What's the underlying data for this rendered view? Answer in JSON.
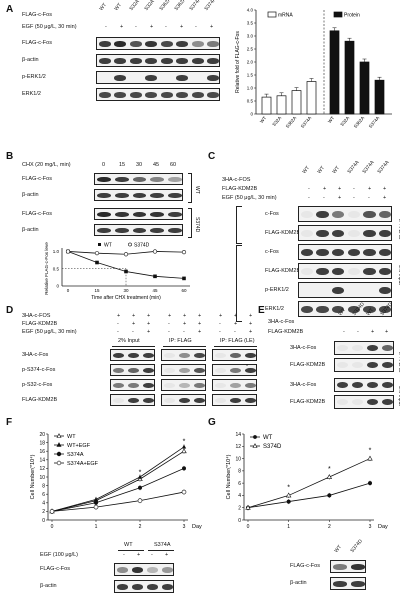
{
  "panel_letters": [
    "A",
    "B",
    "C",
    "D",
    "E",
    "F",
    "G"
  ],
  "A": {
    "row_flag": "FLAG-c-Fos",
    "row_egf": "EGF (50 μg/L, 30 min)",
    "lanes": [
      "WT",
      "WT",
      "S32A",
      "S32A",
      "S362A",
      "S362A",
      "S374A",
      "S374A"
    ],
    "egf_signs": [
      "-",
      "+",
      "-",
      "+",
      "-",
      "+",
      "-",
      "+"
    ],
    "blots": [
      "FLAG-c-Fos",
      "β-actin",
      "p-ERK1/2",
      "ERK1/2"
    ]
  },
  "A_chart": {
    "type": "bar",
    "ylabel": "Relative fold of FLAG-c-Fos",
    "legend": [
      "mRNA",
      "Protein"
    ],
    "categories": [
      "WT",
      "S32A",
      "S362A",
      "S374A"
    ],
    "series": [
      {
        "name": "mRNA",
        "values": [
          0.65,
          0.7,
          0.9,
          1.25
        ]
      },
      {
        "name": "Protein",
        "values": [
          3.2,
          2.8,
          2.0,
          1.3
        ]
      }
    ],
    "yticks": [
      "0",
      "0.5",
      "1.0",
      "1.5",
      "2.0",
      "2.5",
      "3.0",
      "3.5",
      "4.0"
    ],
    "ylim": [
      0,
      4
    ]
  },
  "B": {
    "chx": "CHX (20 mg/L, min)",
    "times": [
      "0",
      "15",
      "30",
      "45",
      "60"
    ],
    "blots": [
      "FLAG-c-Fos",
      "β-actin",
      "FLAG-c-Fos",
      "β-actin"
    ],
    "groups": [
      "WT",
      "S374D"
    ]
  },
  "B_chart": {
    "type": "line",
    "xlabel": "Time after CHX treatment (min)",
    "ylabel": "Relative FLAG-c-Fos level",
    "x": [
      0,
      15,
      30,
      45,
      60
    ],
    "xticks": [
      "0",
      "15",
      "30",
      "45",
      "60"
    ],
    "yticks": [
      "0",
      "0.5",
      "1.0"
    ],
    "ylim": [
      0,
      1.1
    ],
    "series": [
      {
        "name": "WT",
        "values": [
          1.0,
          0.68,
          0.42,
          0.28,
          0.22
        ]
      },
      {
        "name": "S374D",
        "values": [
          1.0,
          0.95,
          0.92,
          1.0,
          0.98
        ]
      }
    ]
  },
  "C": {
    "rows": [
      "3HA-c-FOS",
      "FLAG-KDM2B",
      "EGF (50 μg/L, 30 min)"
    ],
    "lanes": [
      "WT",
      "WT",
      "WT",
      "S374A",
      "S374A",
      "S374A"
    ],
    "kdm": [
      "-",
      "+",
      "+",
      "-",
      "+",
      "+"
    ],
    "egf": [
      "-",
      "-",
      "+",
      "-",
      "-",
      "+"
    ],
    "blots": [
      "c-Fos",
      "FLAG-KDM2B",
      "c-Fos",
      "FLAG-KDM2B",
      "p-ERK1/2",
      "ERK1/2"
    ],
    "ip": "IP: FLAG",
    "input": "3% Input"
  },
  "D": {
    "rows": [
      "3HA-c-FOS",
      "FLAG-KDM2B",
      "EGF (50 μg/L, 30 min)"
    ],
    "signs": [
      [
        "+",
        "+",
        "+",
        "+",
        "+",
        "+",
        "+",
        "+",
        "+"
      ],
      [
        "-",
        "+",
        "+",
        "-",
        "+",
        "+",
        "-",
        "+",
        "+"
      ],
      [
        "-",
        "-",
        "+",
        "-",
        "-",
        "+",
        "-",
        "-",
        "+"
      ]
    ],
    "groups": [
      "2% Input",
      "IP: FLAG",
      "IP: FLAG (LE)"
    ],
    "blots": [
      "3HA-c-Fos",
      "p-S374-c-Fos",
      "p-S32-c-Fos",
      "FLAG-KDM2B"
    ],
    "star": "*"
  },
  "E": {
    "rows": [
      "3HA-c-Fos",
      "FLAG-KDM2B"
    ],
    "lanes": [
      "WT",
      "S374D",
      "WT",
      "S374D"
    ],
    "kdm": [
      "-",
      "-",
      "+",
      "+"
    ],
    "blots": [
      "3HA-c-Fos",
      "FLAG-KDM2B",
      "3HA-c-Fos",
      "FLAG-KDM2B"
    ],
    "ip": "IP: FLAG",
    "input": "3% Input"
  },
  "F_chart": {
    "type": "line",
    "xlabel": "Day",
    "ylabel": "Cell Number(*10⁴)",
    "x": [
      0,
      1,
      2,
      3
    ],
    "xticks": [
      "0",
      "1",
      "2",
      "3"
    ],
    "yticks": [
      "0",
      "2",
      "4",
      "6",
      "8",
      "10",
      "12",
      "14",
      "16",
      "18",
      "20"
    ],
    "ylim": [
      0,
      20
    ],
    "star": "*",
    "series": [
      {
        "name": "WT",
        "values": [
          2.0,
          4.5,
          9.5,
          16.0
        ]
      },
      {
        "name": "WT+EGF",
        "values": [
          2.0,
          4.8,
          10.0,
          17.0
        ]
      },
      {
        "name": "S374A",
        "values": [
          2.0,
          4.0,
          7.5,
          12.0
        ]
      },
      {
        "name": "S374A+EGF",
        "values": [
          2.0,
          3.0,
          4.5,
          6.5
        ]
      }
    ]
  },
  "F_blot": {
    "lanes": [
      "WT",
      "S374A"
    ],
    "egf_row": "EGF (100 μg/L)",
    "egf": [
      "-",
      "+",
      "-",
      "+"
    ],
    "blots": [
      "FLAG-c-Fos",
      "β-actin"
    ]
  },
  "G_chart": {
    "type": "line",
    "xlabel": "Day",
    "ylabel": "Cell Number(*10⁴)",
    "x": [
      0,
      1,
      2,
      3
    ],
    "xticks": [
      "0",
      "1",
      "2",
      "3"
    ],
    "yticks": [
      "0",
      "2",
      "4",
      "6",
      "8",
      "10",
      "12",
      "14"
    ],
    "ylim": [
      0,
      14
    ],
    "star": "*",
    "series": [
      {
        "name": "WT",
        "values": [
          2.0,
          3.0,
          4.0,
          6.0
        ]
      },
      {
        "name": "S374D",
        "values": [
          2.0,
          4.0,
          7.0,
          10.0
        ]
      }
    ]
  },
  "G_blot": {
    "lanes": [
      "WT",
      "S374D"
    ],
    "blots": [
      "FLAG-c-Fos",
      "β-actin"
    ]
  },
  "colors": {
    "band": "#2a2a2a",
    "axis": "#222222"
  }
}
